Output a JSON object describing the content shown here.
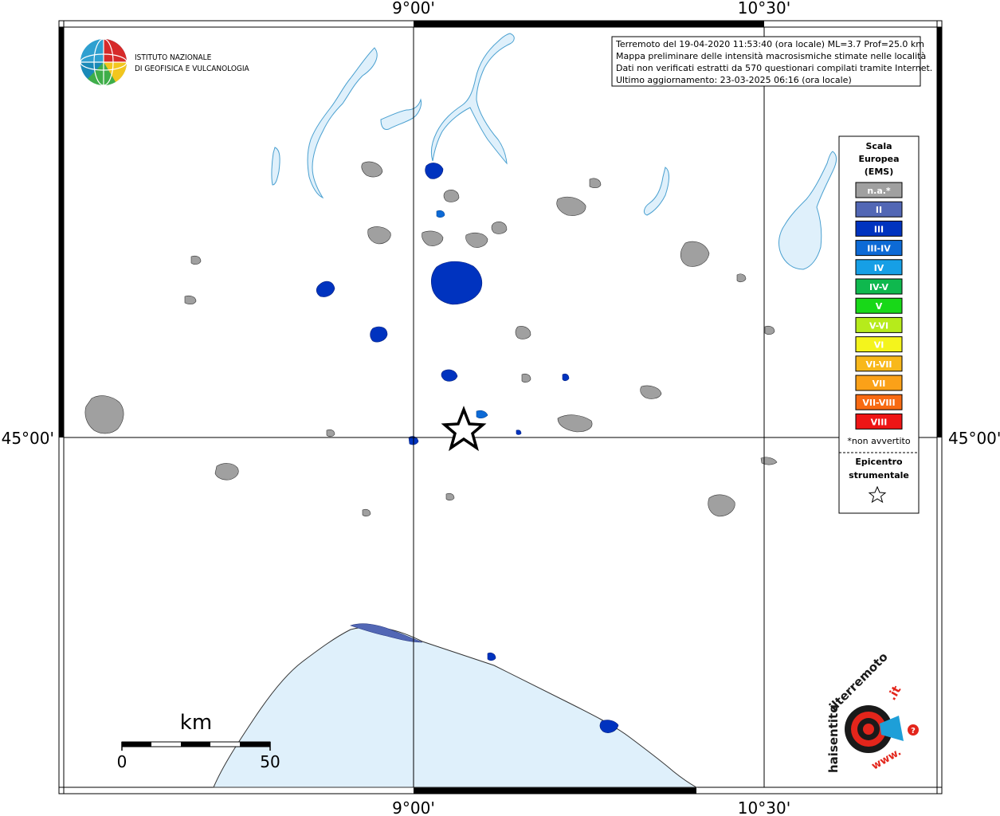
{
  "axes": {
    "top_left_lon": "9°00'",
    "top_right_lon": "10°30'",
    "bottom_left_lon": "9°00'",
    "bottom_right_lon": "10°30'",
    "left_lat": "45°00'",
    "right_lat": "45°00'"
  },
  "institute": {
    "line1": "ISTITUTO NAZIONALE",
    "line2": "DI GEOFISICA E VULCANOLOGIA"
  },
  "info_box": {
    "line1": "Terremoto del 19-04-2020 11:53:40 (ora locale) ML=3.7 Prof=25.0 km",
    "line2": "Mappa preliminare delle intensità macrosismiche stimate nelle località",
    "line3": "Dati non verificati estratti da 570 questionari compilati tramite Internet.",
    "line4": "Ultimo aggiornamento: 23-03-2025 06:16 (ora locale)"
  },
  "legend": {
    "title_line1": "Scala",
    "title_line2": "Europea",
    "title_line3": "(EMS)",
    "items": [
      {
        "label": "n.a.*",
        "color": "#a0a0a0"
      },
      {
        "label": "II",
        "color": "#5267b5"
      },
      {
        "label": "III",
        "color": "#0033bf"
      },
      {
        "label": "III-IV",
        "color": "#0d6ad6"
      },
      {
        "label": "IV",
        "color": "#169fe6"
      },
      {
        "label": "IV-V",
        "color": "#0fb84e"
      },
      {
        "label": "V",
        "color": "#18d818"
      },
      {
        "label": "V-VI",
        "color": "#b6eb1b"
      },
      {
        "label": "VI",
        "color": "#f4f41c"
      },
      {
        "label": "VI-VII",
        "color": "#f8b81b"
      },
      {
        "label": "VII",
        "color": "#fba118"
      },
      {
        "label": "VII-VIII",
        "color": "#f86a12"
      },
      {
        "label": "VIII",
        "color": "#ee1515"
      }
    ],
    "note": "*non avvertito",
    "epicenter_line1": "Epicentro",
    "epicenter_line2": "strumentale"
  },
  "scale_bar": {
    "unit": "km",
    "start": "0",
    "end": "50"
  },
  "site_logo": {
    "text_a": "haisentito",
    "text_b": "ilterremoto",
    "text_c": ".it",
    "text_d": "www."
  },
  "colors": {
    "water": "#dff0fb",
    "water_stroke": "#4aa0d0",
    "na": "#a0a0a0",
    "iii": "#0033bf"
  }
}
